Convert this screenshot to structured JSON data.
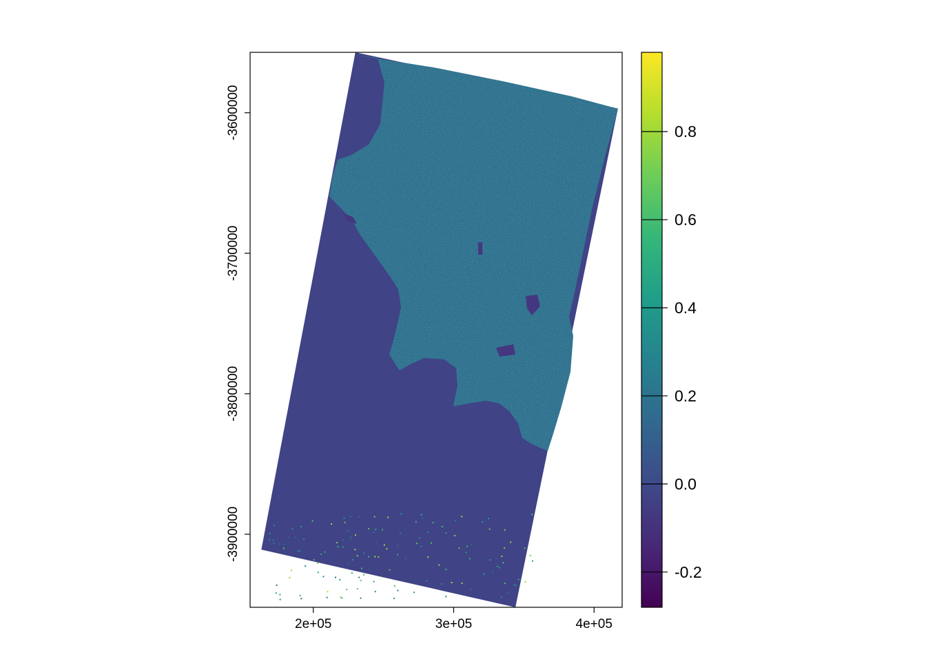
{
  "chart_data": {
    "type": "heatmap",
    "title": "",
    "xlabel": "",
    "ylabel": "",
    "xlim": [
      155000,
      420000
    ],
    "ylim": [
      -3952000,
      -3557000
    ],
    "x_ticks": [
      {
        "value": 200000,
        "label": "2e+05"
      },
      {
        "value": 300000,
        "label": "3e+05"
      },
      {
        "value": 400000,
        "label": "4e+05"
      }
    ],
    "y_ticks": [
      {
        "value": -3600000,
        "label": "-3600000"
      },
      {
        "value": -3700000,
        "label": "-3700000"
      },
      {
        "value": -3800000,
        "label": "-3800000"
      },
      {
        "value": -3900000,
        "label": "-3900000"
      }
    ],
    "raster_footprint": [
      [
        230000,
        -3557000
      ],
      [
        417000,
        -3597000
      ],
      [
        344000,
        -3952000
      ],
      [
        163000,
        -3911000
      ]
    ],
    "colorbar": {
      "palette": "viridis",
      "range": [
        -0.28,
        0.98
      ],
      "colors": [
        "#440154",
        "#482878",
        "#3E4A89",
        "#31688E",
        "#26828E",
        "#1F9E89",
        "#35B779",
        "#6DCD59",
        "#B4DE2C",
        "#FDE725"
      ],
      "ticks": [
        {
          "value": -0.2,
          "label": "-0.2"
        },
        {
          "value": 0.0,
          "label": "0.0"
        },
        {
          "value": 0.2,
          "label": "0.2"
        },
        {
          "value": 0.4,
          "label": "0.4"
        },
        {
          "value": 0.6,
          "label": "0.6"
        },
        {
          "value": 0.8,
          "label": "0.8"
        }
      ]
    },
    "region_values": {
      "ocean": -0.03,
      "land": 0.18,
      "vegetation_high": 0.45
    },
    "grid": false,
    "legend": "right"
  }
}
